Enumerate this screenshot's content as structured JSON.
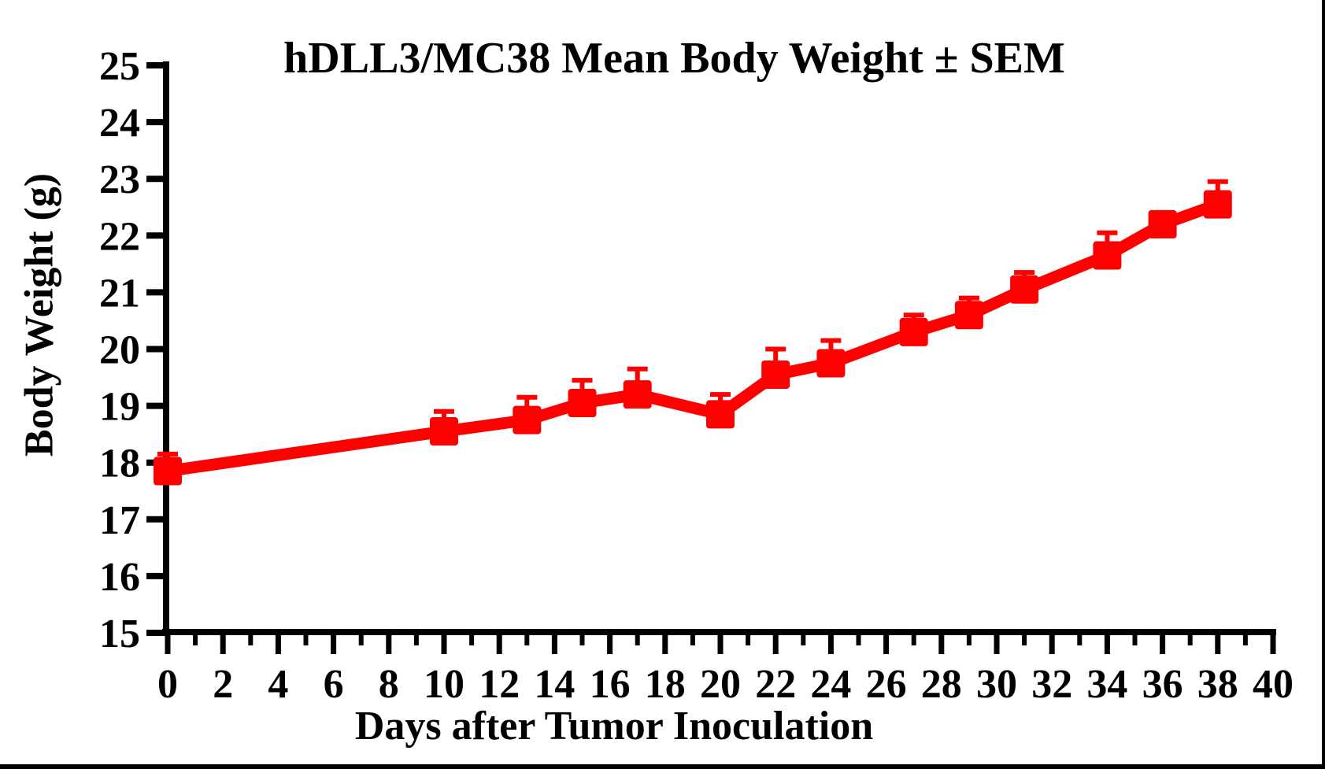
{
  "figure": {
    "title": "hDLL3/MC38 Mean Body Weight ± SEM",
    "x_axis_label": "Days after Tumor Inoculation",
    "y_axis_label": "Body Weight (g)"
  },
  "colors": {
    "series": "#FF0000",
    "axis": "#000000",
    "background": "#FFFFFF"
  },
  "chart_data": {
    "type": "line",
    "title": "hDLL3/MC38 Mean Body Weight ± SEM",
    "xlabel": "Days after Tumor Inoculation",
    "ylabel": "Body Weight (g)",
    "xlim": [
      0,
      40
    ],
    "ylim": [
      15,
      25
    ],
    "x_major_ticks": [
      0,
      2,
      4,
      6,
      8,
      10,
      12,
      14,
      16,
      18,
      20,
      22,
      24,
      26,
      28,
      30,
      32,
      34,
      36,
      38,
      40
    ],
    "x_minor_tick_interval": 1,
    "y_ticks": [
      15,
      16,
      17,
      18,
      19,
      20,
      21,
      22,
      23,
      24,
      25
    ],
    "grid": false,
    "legend_position": "none",
    "error_bars": "upper SEM only",
    "series": [
      {
        "name": "hDLL3/MC38 mean body weight",
        "color": "#FF0000",
        "marker": "square",
        "x": [
          0,
          10,
          13,
          15,
          17,
          20,
          22,
          24,
          27,
          29,
          31,
          34,
          36,
          38
        ],
        "y": [
          17.85,
          18.55,
          18.75,
          19.05,
          19.2,
          18.85,
          19.55,
          19.75,
          20.3,
          20.6,
          21.05,
          21.65,
          22.2,
          22.55
        ],
        "sem_upper": [
          0.3,
          0.35,
          0.4,
          0.4,
          0.45,
          0.35,
          0.45,
          0.4,
          0.3,
          0.3,
          0.3,
          0.4,
          0.1,
          0.4
        ]
      }
    ]
  }
}
